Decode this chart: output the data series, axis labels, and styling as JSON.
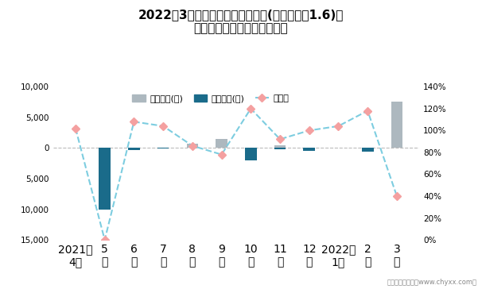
{
  "title": "2022年3月伊兰特旗下最畅销轿车(伊兰特三厢1.6)近\n一年库存情况及产销率统计图",
  "x_labels": [
    "2021年\n4月",
    "5\n月",
    "6\n月",
    "7\n月",
    "8\n月",
    "9\n月",
    "10\n月",
    "11\n月",
    "12\n月",
    "2022年\n1月",
    "2\n月",
    "3\n月"
  ],
  "bar1_values": [
    0,
    0,
    0,
    0,
    700,
    1500,
    0,
    400,
    0,
    0,
    0,
    7500
  ],
  "bar2_values": [
    0,
    -10000,
    -300,
    -100,
    0,
    0,
    -2000,
    -200,
    -500,
    0,
    -600,
    0
  ],
  "line_values": [
    1.02,
    0.0,
    1.08,
    1.04,
    0.86,
    0.78,
    1.2,
    0.92,
    1.0,
    1.04,
    1.18,
    0.4
  ],
  "bar1_color": "#adb8bf",
  "bar2_color": "#1a6b8a",
  "line_color": "#7dcde0",
  "line_marker_facecolor": "#f4a0a0",
  "line_marker_edgecolor": "#f4a0a0",
  "ylim": [
    -15000,
    10000
  ],
  "y2lim": [
    0.0,
    1.4
  ],
  "yticks": [
    -15000,
    -10000,
    -5000,
    0,
    5000,
    10000
  ],
  "y2ticks": [
    0.0,
    0.2,
    0.4,
    0.6,
    0.8,
    1.0,
    1.2,
    1.4
  ],
  "legend_labels": [
    "积压库存(辆)",
    "清仓库存(辆)",
    "产销率"
  ],
  "background_color": "#ffffff",
  "zero_line_color": "#bbbbbb",
  "footer": "制图：智研咨询（www.chyxx.com）"
}
